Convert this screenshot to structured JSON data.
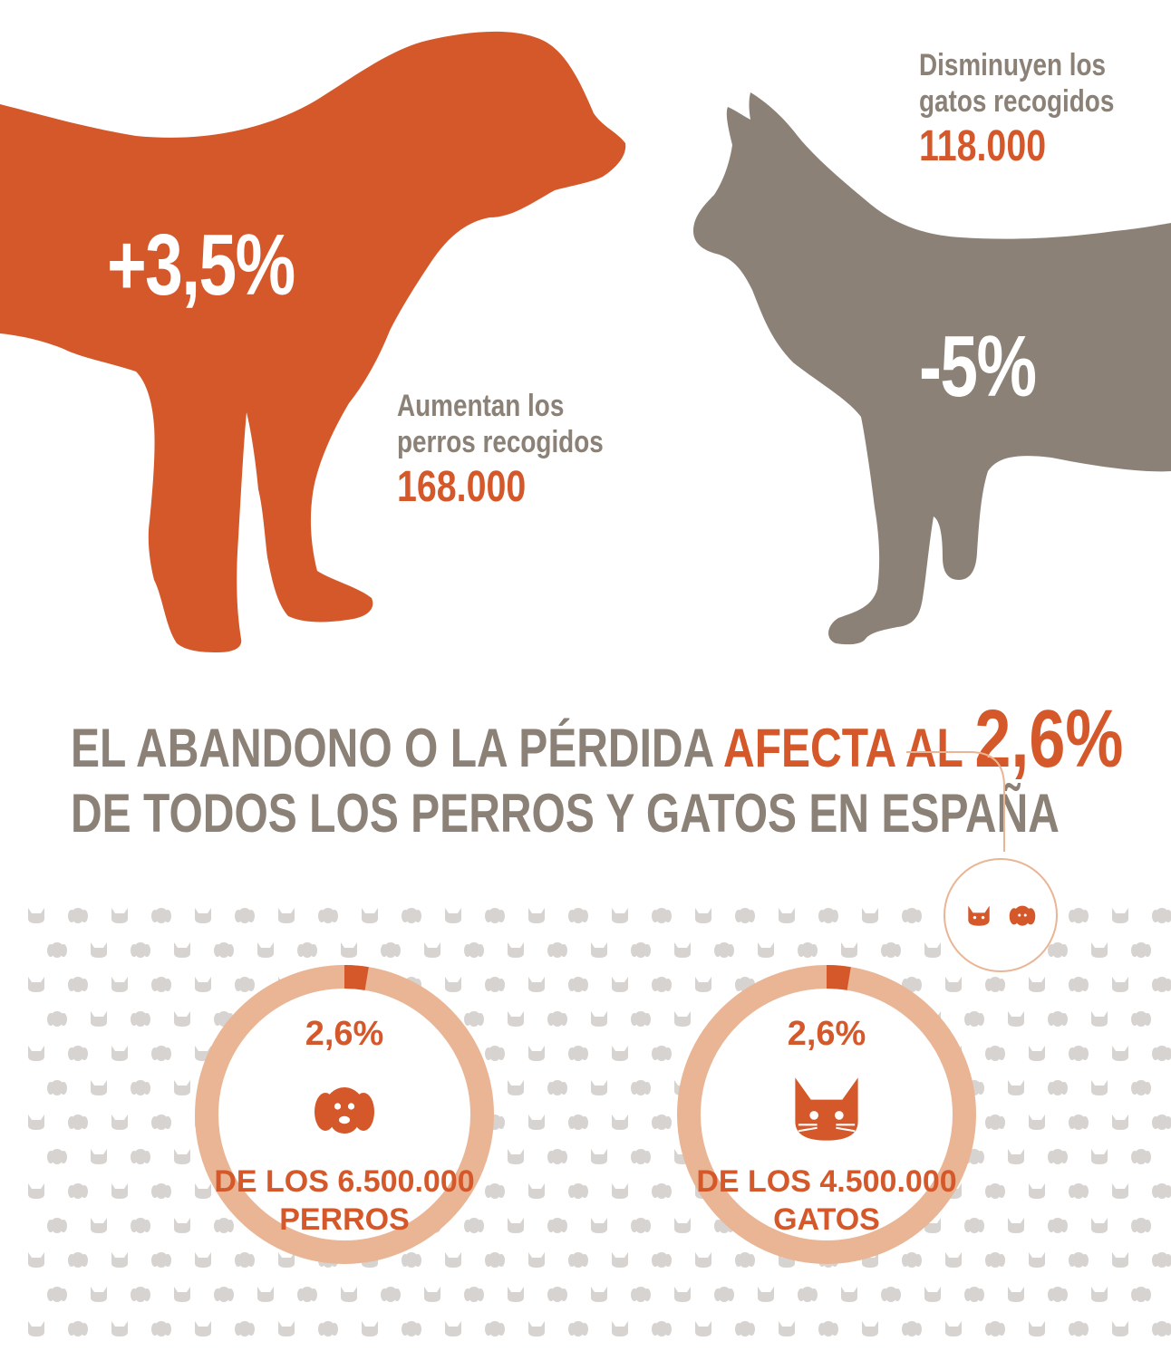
{
  "colors": {
    "accent": "#d4582a",
    "gray": "#8b8176",
    "ring_track": "#e9b594",
    "pattern": "#d6d3d0",
    "line": "#e9b594"
  },
  "top": {
    "dog": {
      "change": "+3,5%",
      "caption_line1": "Aumentan los",
      "caption_line2": "perros recogidos",
      "count": "168.000"
    },
    "cat": {
      "change": "-5%",
      "caption_line1": "Disminuyen los",
      "caption_line2": "gatos recogidos",
      "count": "118.000"
    }
  },
  "headline": {
    "part1": "EL ABANDONO O LA PÉRDIDA ",
    "part2": "AFECTA AL ",
    "part3": "2,6%",
    "line2": "DE TODOS LOS PERROS Y GATOS EN ESPAÑA"
  },
  "icons": [
    "dog-icon",
    "cat-icon"
  ],
  "chart_data": {
    "type": "pie",
    "charts": [
      {
        "category": "perros",
        "percent": 2.6,
        "label": "2,6%",
        "desc_line1": "DE LOS 6.500.000",
        "desc_line2": "PERROS",
        "total": 6500000
      },
      {
        "category": "gatos",
        "percent": 2.6,
        "label": "2,6%",
        "desc_line1": "DE LOS 4.500.000",
        "desc_line2": "GATOS",
        "total": 4500000
      }
    ]
  }
}
